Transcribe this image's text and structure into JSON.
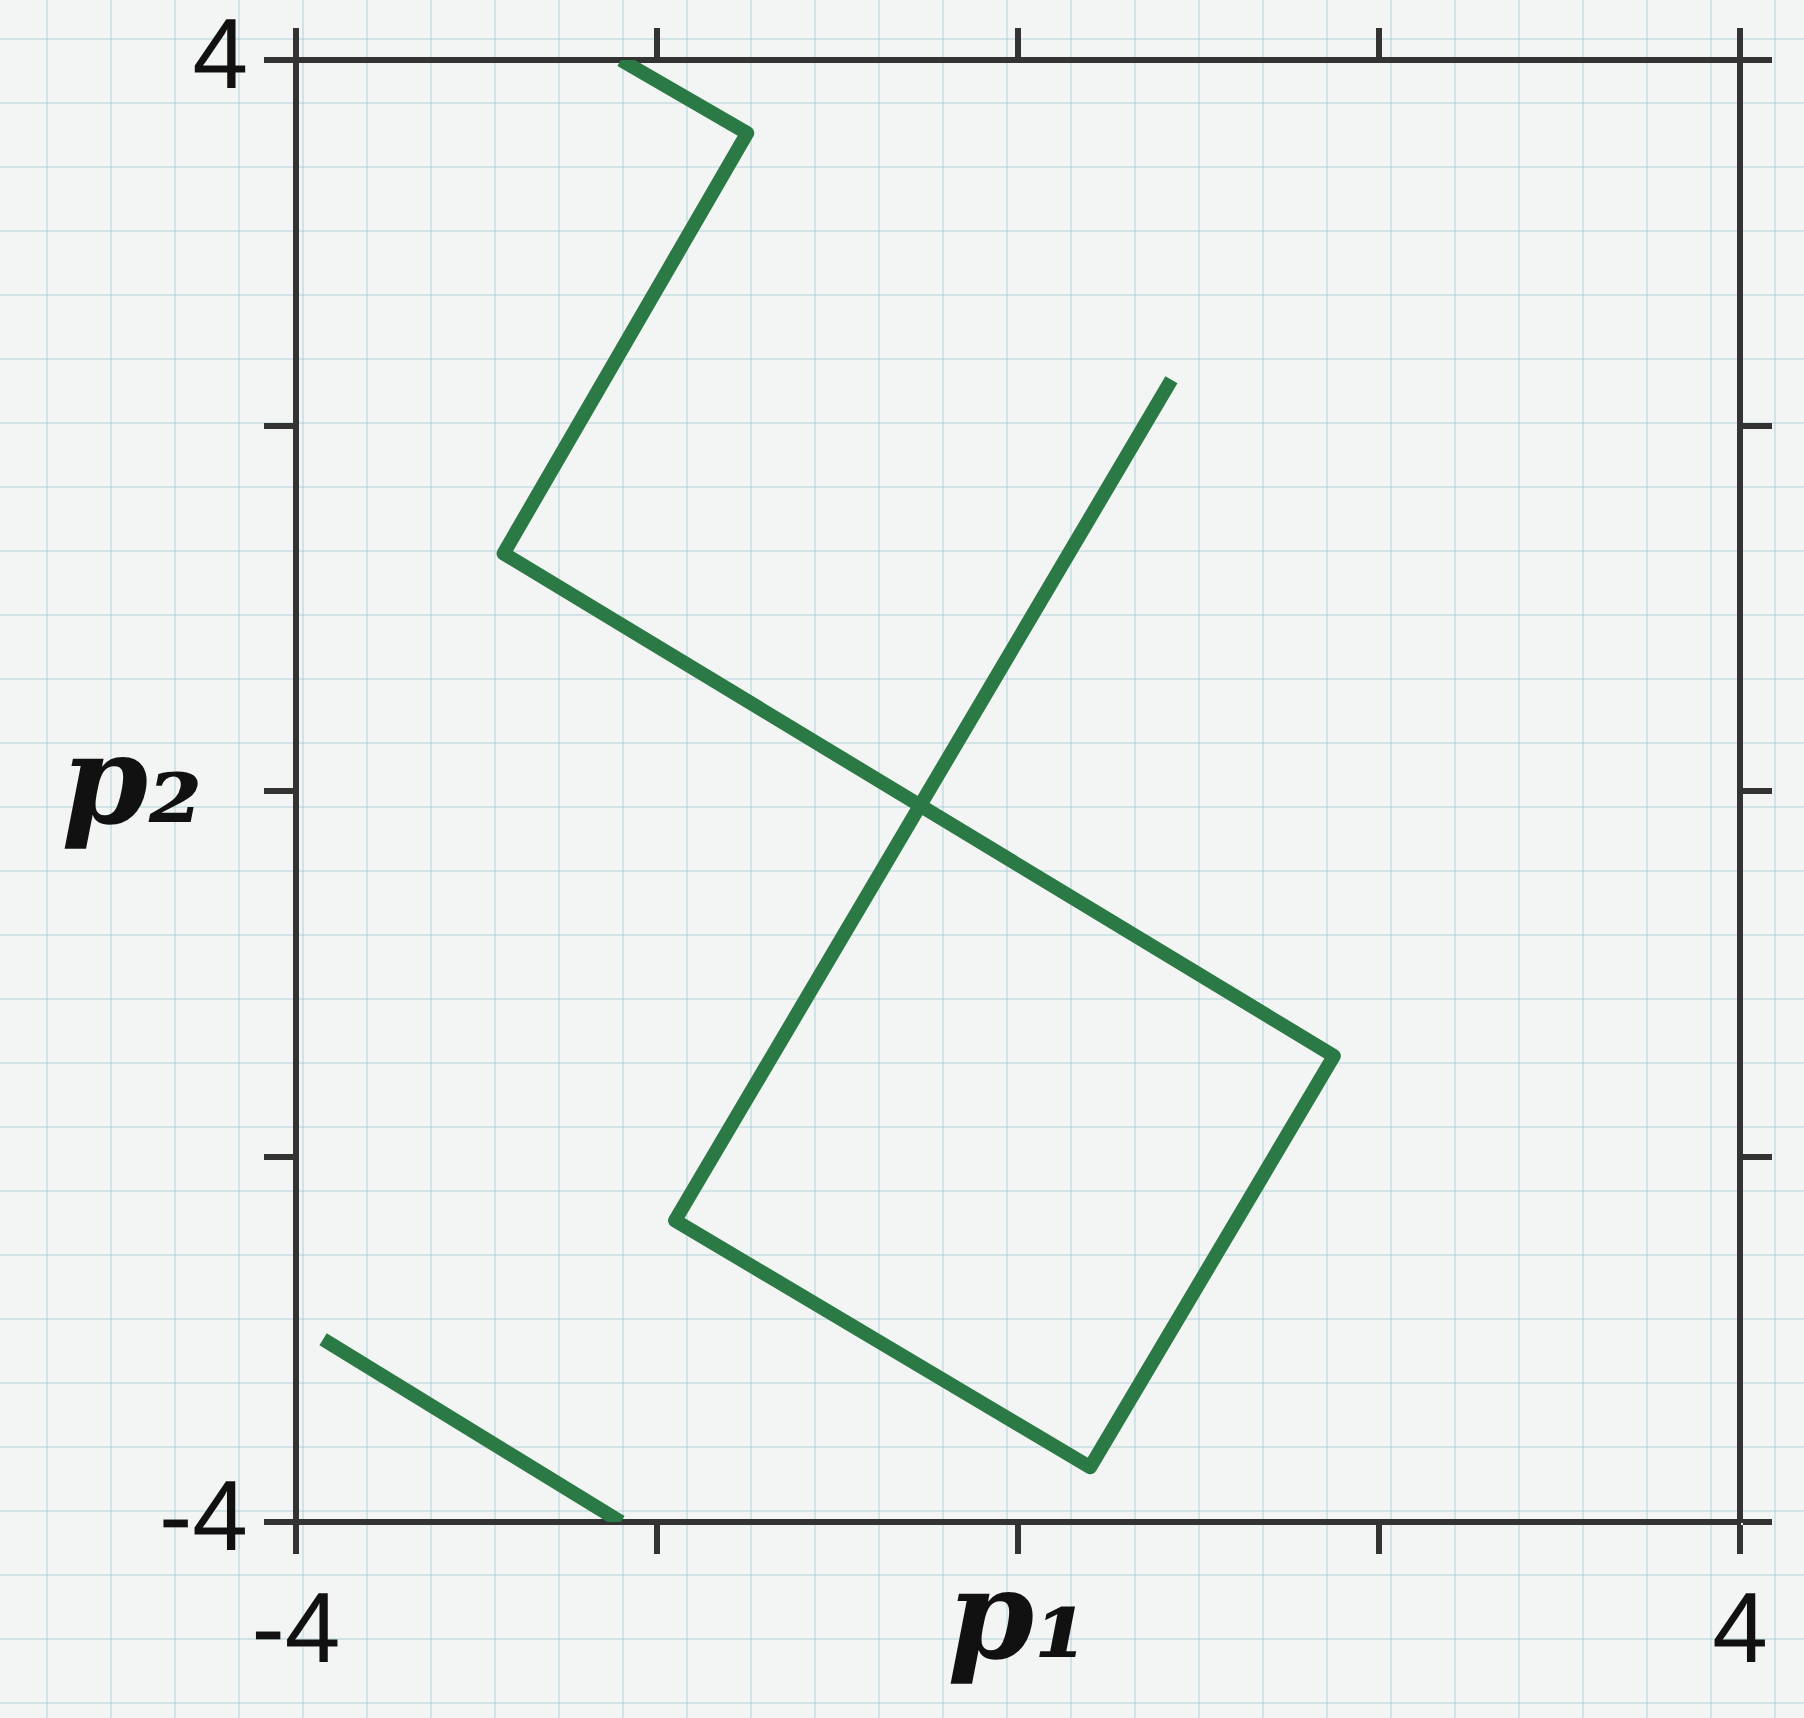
{
  "chart_data": {
    "type": "line",
    "xlabel": "p₁",
    "ylabel": "p₂",
    "xlim": [
      -4,
      4
    ],
    "ylim": [
      -4,
      4
    ],
    "xticks": [
      -4,
      {
        "value": -2,
        "label": null
      },
      {
        "value": 0,
        "label": null
      },
      {
        "value": 2,
        "label": null
      },
      4
    ],
    "yticks": [
      -4,
      {
        "value": -2,
        "label": null
      },
      {
        "value": 0,
        "label": null
      },
      {
        "value": 2,
        "label": null
      },
      4
    ],
    "series": [
      {
        "color": "#2b7a45",
        "x": [
          -3.85,
          -2.2
        ],
        "values": [
          -3,
          -4
        ]
      },
      {
        "color": "#2b7a45",
        "x": [
          -2.2,
          -1.5,
          -2.85,
          1.75,
          0.4,
          -1.9,
          0.85
        ],
        "values": [
          4,
          3.6,
          1.3,
          -1.45,
          -3.7,
          -2.35,
          2.25
        ]
      }
    ],
    "grid": false,
    "legend": false,
    "marker": "none",
    "line_style": "solid"
  }
}
